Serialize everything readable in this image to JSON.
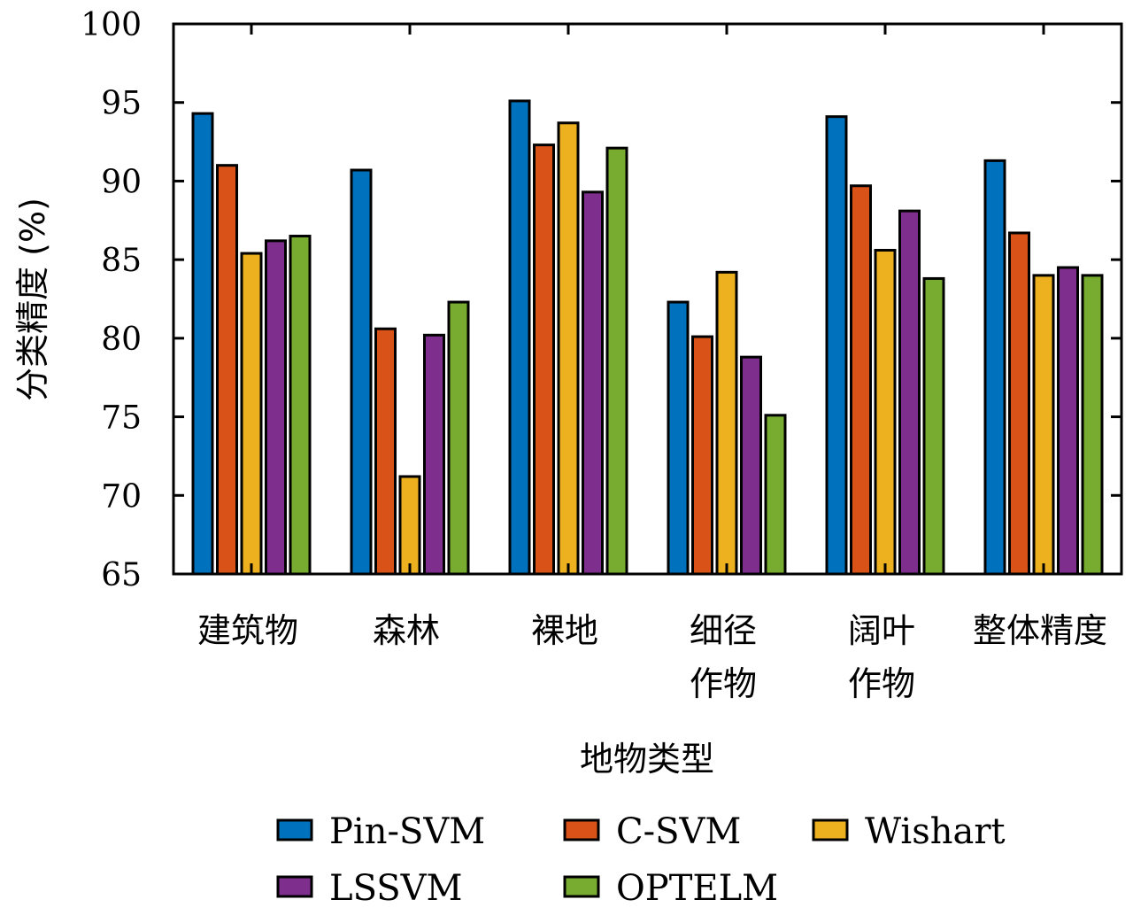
{
  "chart_data": {
    "type": "bar",
    "title": "",
    "xlabel": "地物类型",
    "ylabel": "分类精度 (%)",
    "ylim": [
      65,
      100
    ],
    "yticks": [
      65,
      70,
      75,
      80,
      85,
      90,
      95,
      100
    ],
    "grid": false,
    "legend_position": "bottom",
    "categories": [
      [
        "建筑物"
      ],
      [
        "森林"
      ],
      [
        "裸地"
      ],
      [
        "细径",
        "作物"
      ],
      [
        "阔叶",
        "作物"
      ],
      [
        "整体精度"
      ]
    ],
    "series": [
      {
        "name": "Pin-SVM",
        "color": "#0072BD",
        "values": [
          94.3,
          90.7,
          95.1,
          82.3,
          94.1,
          91.3
        ]
      },
      {
        "name": "C-SVM",
        "color": "#D95319",
        "values": [
          91.0,
          80.6,
          92.3,
          80.1,
          89.7,
          86.7
        ]
      },
      {
        "name": "Wishart",
        "color": "#EDB120",
        "values": [
          85.4,
          71.2,
          93.7,
          84.2,
          85.6,
          84.0
        ]
      },
      {
        "name": "LSSVM",
        "color": "#7E2F8E",
        "values": [
          86.2,
          80.2,
          89.3,
          78.8,
          88.1,
          84.5
        ]
      },
      {
        "name": "OPTELM",
        "color": "#77AC30",
        "values": [
          86.5,
          82.3,
          92.1,
          75.1,
          83.8,
          84.0
        ]
      }
    ]
  }
}
